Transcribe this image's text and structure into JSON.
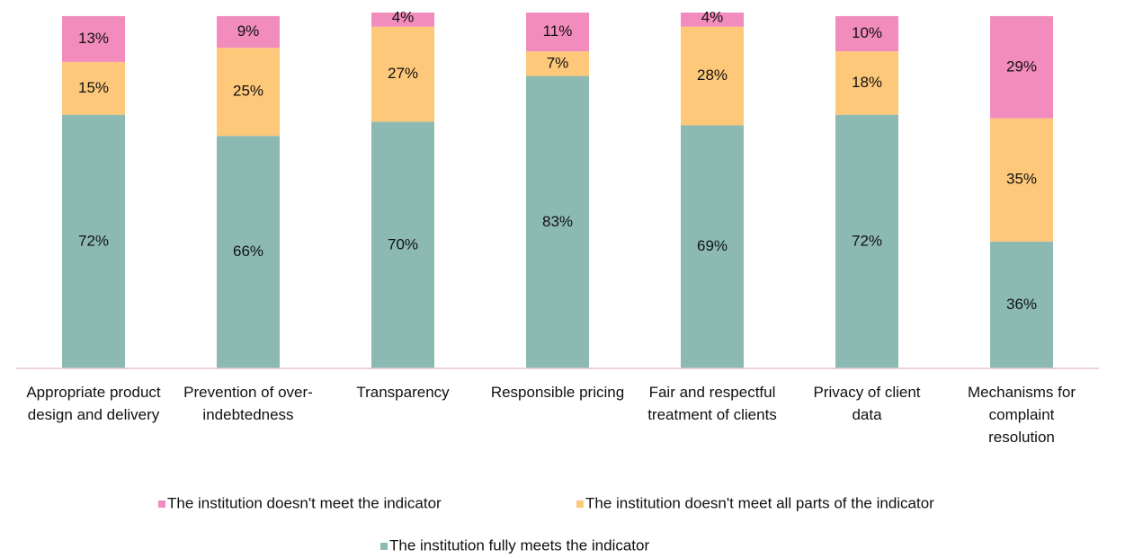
{
  "chart_data": {
    "type": "stacked_bar",
    "categories": [
      "Appropriate product design and delivery",
      "Prevention of over-indebtedness",
      "Transparency",
      "Responsible pricing",
      "Fair and respectful treatment of clients",
      "Privacy of client data",
      "Mechanisms for complaint resolution"
    ],
    "series": [
      {
        "name": "The institution fully meets the indicator",
        "color": "#8cbab3",
        "values": [
          72,
          66,
          70,
          83,
          69,
          72,
          36
        ],
        "value_labels": [
          "72%",
          "66%",
          "70%",
          "83%",
          "69%",
          "72%",
          "36%"
        ]
      },
      {
        "name": "The institution doesn't meet all parts of the indicator",
        "color": "#fdc87a",
        "values": [
          15,
          25,
          27,
          7,
          28,
          18,
          35
        ],
        "value_labels": [
          "15%",
          "25%",
          "27%",
          "7%",
          "28%",
          "18%",
          "35%"
        ]
      },
      {
        "name": "The institution doesn't meet the indicator",
        "color": "#f28cbd",
        "values": [
          13,
          9,
          4,
          11,
          4,
          10,
          29
        ],
        "value_labels": [
          "13%",
          "9%",
          "4%",
          "11%",
          "4%",
          "10%",
          "29%"
        ]
      }
    ]
  }
}
